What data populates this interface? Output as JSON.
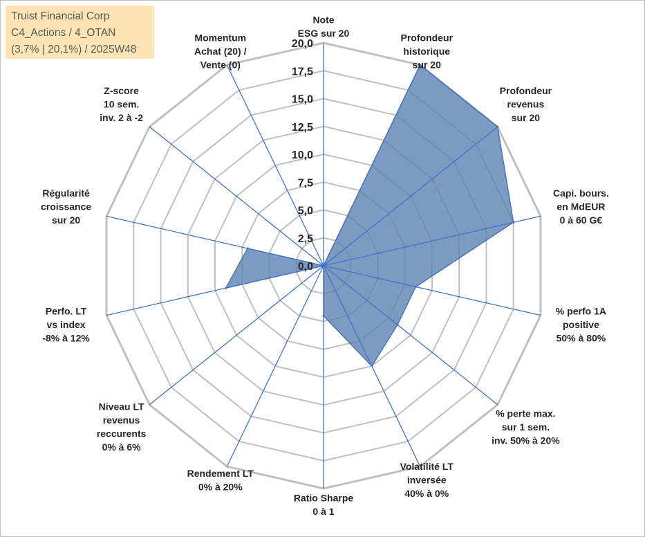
{
  "header": {
    "line1": "Truist Financial Corp",
    "line2": "C4_Actions / 4_OTAN",
    "line3": "(3,7% | 20,1%) / 2025W48"
  },
  "chart_data": {
    "type": "radar",
    "title": "",
    "rlim": [
      0,
      20
    ],
    "ticks": [
      "0,0",
      "2,5",
      "5,0",
      "7,5",
      "10,0",
      "12,5",
      "15,0",
      "17,5",
      "20,0"
    ],
    "axes": [
      {
        "label": [
          "Note",
          "ESG sur 20"
        ]
      },
      {
        "label": [
          "Profondeur",
          "historique",
          "sur 20"
        ]
      },
      {
        "label": [
          "Profondeur",
          "revenus",
          "sur 20"
        ]
      },
      {
        "label": [
          "Capi. bours.",
          "en MdEUR",
          "0 à 60 G€"
        ]
      },
      {
        "label": [
          "% perfo 1A",
          "positive",
          "50% à 80%"
        ]
      },
      {
        "label": [
          "% perte max.",
          "sur 1 sem.",
          "inv. 50% à 20%"
        ]
      },
      {
        "label": [
          "Volatilité LT",
          "inversée",
          "40% à 0%"
        ]
      },
      {
        "label": [
          "Ratio Sharpe",
          "0 à 1"
        ]
      },
      {
        "label": [
          "Rendement LT",
          "0% à 20%"
        ]
      },
      {
        "label": [
          "Niveau LT",
          "revenus",
          "reccurents",
          "0% à 6%"
        ]
      },
      {
        "label": [
          "Perfo. LT",
          "vs index",
          "-8% à 12%"
        ]
      },
      {
        "label": [
          "Régularité",
          "croissance",
          "sur 20"
        ]
      },
      {
        "label": [
          "Z-score",
          "10 sem.",
          "inv. 2 à -2"
        ]
      },
      {
        "label": [
          "Momentum",
          "Achat (20) /",
          "Vente (0)"
        ]
      }
    ],
    "series": [
      {
        "values": [
          0,
          20,
          20,
          17.5,
          8.5,
          8.5,
          10,
          4.5,
          0,
          0,
          9,
          7,
          0,
          0
        ]
      }
    ],
    "colors": {
      "fill": "#5a82b4",
      "stroke": "#4f74ad",
      "spoke": "#4472c4",
      "grid": "#bfbfbf"
    },
    "grid": true,
    "legend": "none"
  }
}
